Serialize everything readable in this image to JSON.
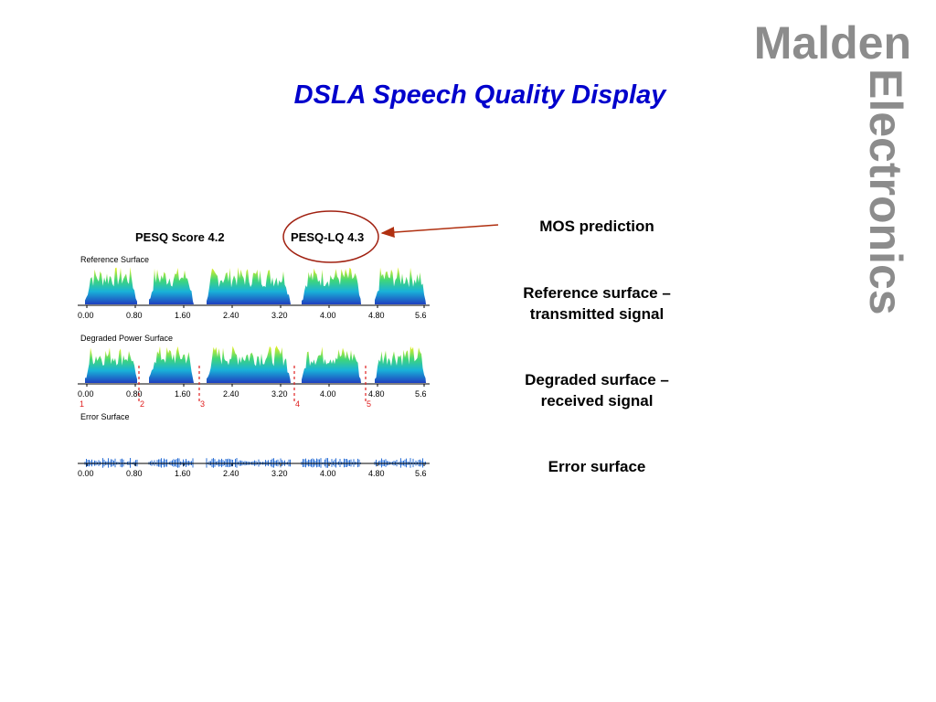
{
  "logo": {
    "line1": "Malden",
    "line2": "Electronics"
  },
  "title": "DSLA Speech Quality Display",
  "screenshot": {
    "pesq_score": "PESQ Score 4.2",
    "pesq_lq": "PESQ-LQ 4.3",
    "panels": [
      {
        "label": "Reference Surface"
      },
      {
        "label": "Degraded Power Surface",
        "markers": [
          "1",
          "2",
          "3",
          "4",
          "5"
        ]
      },
      {
        "label": "Error Surface"
      }
    ],
    "time_ticks": [
      "0.00",
      "0.80",
      "1.60",
      "2.40",
      "3.20",
      "4.00",
      "4.80",
      "5.6"
    ]
  },
  "annotations": [
    [
      "MOS prediction"
    ],
    [
      "Reference surface –",
      "transmitted signal"
    ],
    [
      "Degraded surface –",
      "received signal"
    ],
    [
      "Error surface"
    ]
  ]
}
